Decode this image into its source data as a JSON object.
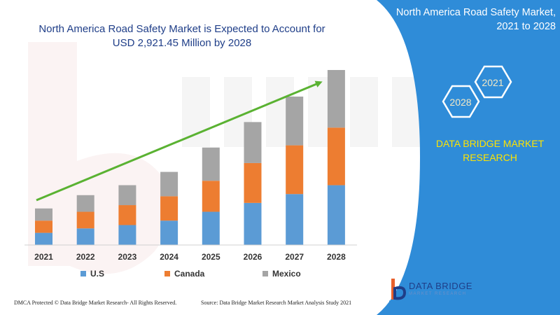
{
  "panel": {
    "title_line1": "North America Road Safety Market,",
    "title_line2": "2021 to 2028",
    "hex_left": "2028",
    "hex_right": "2021",
    "brand_line1": "DATA BRIDGE MARKET",
    "brand_line2": "RESEARCH",
    "bg_color": "#2f8cd8",
    "hex_text_color": "#f3e9c6",
    "brand_color": "#ffe300"
  },
  "header": {
    "title_line1": "North America Road Safety Market is Expected to Account for",
    "title_line2": "USD 2,921.45 Million by 2028"
  },
  "chart_data": {
    "type": "bar",
    "stacked": true,
    "categories": [
      "2021",
      "2022",
      "2023",
      "2024",
      "2025",
      "2026",
      "2027",
      "2028"
    ],
    "series": [
      {
        "name": "U.S",
        "color": "#5b9bd5",
        "values": [
          11,
          15,
          18,
          22,
          30,
          38,
          46,
          54
        ]
      },
      {
        "name": "Canada",
        "color": "#ed7d31",
        "values": [
          11,
          15,
          18,
          22,
          28,
          36,
          44,
          52
        ]
      },
      {
        "name": "Mexico",
        "color": "#a5a5a5",
        "values": [
          11,
          15,
          18,
          22,
          30,
          37,
          44,
          52
        ]
      }
    ],
    "ylim": [
      0,
      158
    ],
    "grid": false,
    "trend_arrow": true,
    "trend_color": "#5ab232",
    "legend_position": "bottom"
  },
  "footer": {
    "left": "DMCA Protected © Data Bridge Market Research- All Rights Reserved.",
    "right": "Source: Data Bridge Market Research Market Analysis Study 2021"
  },
  "logo": {
    "name": "DATA BRIDGE",
    "tagline": "MARKET RESEARCH"
  }
}
